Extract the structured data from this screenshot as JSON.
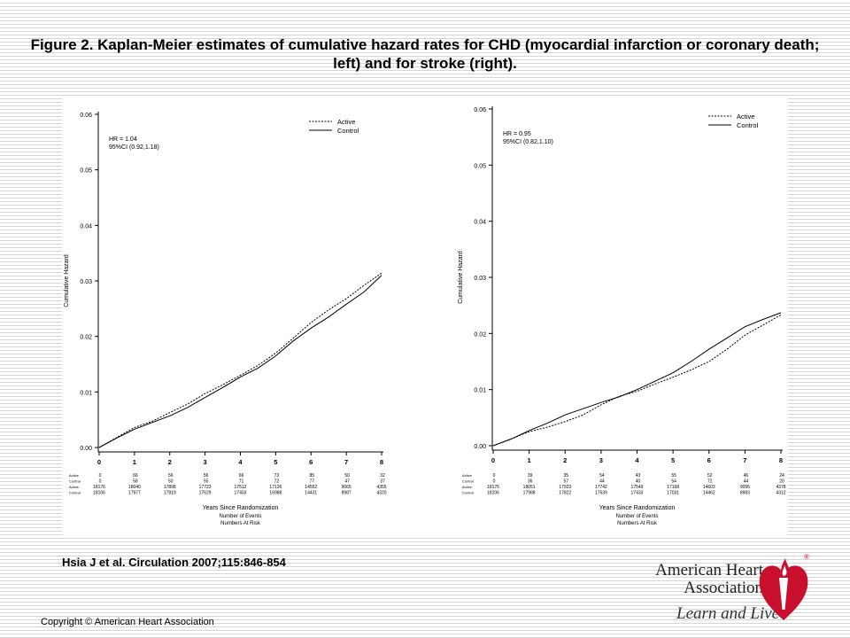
{
  "title": "Figure 2. Kaplan-Meier estimates of cumulative hazard rates for CHD (myocardial infarction or coronary death; left) and for stroke (right).",
  "citation": "Hsia J et al. Circulation 2007;115:846-854",
  "copyright": "Copyright © American Heart Association",
  "logo": {
    "name": "American Heart Association",
    "tagline": "Learn and Live",
    "registered": "®",
    "brand_color": "#c8102e"
  },
  "chart_data": [
    {
      "type": "line",
      "ylabel": "Cumulative Hazard",
      "xlabel": "Years Since Randomization",
      "xlabel_sub": [
        "Number of Events",
        "Numbers At Risk"
      ],
      "xlim": [
        0,
        8
      ],
      "ylim": [
        0,
        0.06
      ],
      "yticks": [
        "0.00",
        "0.01",
        "0.02",
        "0.03",
        "0.04",
        "0.05",
        "0.06"
      ],
      "xticks": [
        "0",
        "1",
        "2",
        "3",
        "4",
        "5",
        "6",
        "7",
        "8"
      ],
      "legend_position": "top-right",
      "annotation": [
        "HR  =  1.04",
        "95%CI  (0.92,1.18)"
      ],
      "series": [
        {
          "name": "Active",
          "style": "dashed",
          "x": [
            0,
            0.5,
            1,
            1.5,
            2,
            2.5,
            3,
            3.5,
            4,
            4.5,
            5,
            5.5,
            6,
            6.5,
            7,
            7.5,
            8
          ],
          "y": [
            0,
            0.0018,
            0.0036,
            0.0047,
            0.0063,
            0.0078,
            0.0097,
            0.0113,
            0.013,
            0.0148,
            0.017,
            0.0197,
            0.0225,
            0.0248,
            0.0268,
            0.0292,
            0.0314
          ]
        },
        {
          "name": "Control",
          "style": "solid",
          "x": [
            0,
            0.5,
            1,
            1.5,
            2,
            2.5,
            3,
            3.5,
            4,
            4.5,
            5,
            5.5,
            6,
            6.5,
            7,
            7.5,
            8
          ],
          "y": [
            0,
            0.0017,
            0.0033,
            0.0045,
            0.0057,
            0.0072,
            0.009,
            0.0108,
            0.0127,
            0.0143,
            0.0165,
            0.0192,
            0.0215,
            0.0235,
            0.0258,
            0.028,
            0.031
          ]
        }
      ],
      "risk_table": [
        {
          "label": "Active",
          "values": [
            "0",
            "66",
            "56",
            "56",
            "66",
            "73",
            "85",
            "50",
            "32"
          ]
        },
        {
          "label": "Control",
          "values": [
            "0",
            "58",
            "50",
            "55",
            "71",
            "72",
            "77",
            "47",
            "37"
          ]
        },
        {
          "label": "Active",
          "values": [
            "18176",
            "18040",
            "17898",
            "17723",
            "17512",
            "17126",
            "14552",
            "9065",
            "4355"
          ]
        },
        {
          "label": "Control",
          "values": [
            "18106",
            "17977",
            "17819",
            "17629",
            "17403",
            "16988",
            "14431",
            "8987",
            "4320"
          ]
        }
      ]
    },
    {
      "type": "line",
      "ylabel": "Cumulative Hazard",
      "xlabel": "Years Since Randomization",
      "xlabel_sub": [
        "Number of Events",
        "Numbers At Risk"
      ],
      "xlim": [
        0,
        8
      ],
      "ylim": [
        0,
        0.06
      ],
      "yticks": [
        "0.00",
        "0.01",
        "0.02",
        "0.03",
        "0.04",
        "0.05",
        "0.06"
      ],
      "xticks": [
        "0",
        "1",
        "2",
        "3",
        "4",
        "5",
        "6",
        "7",
        "8"
      ],
      "legend_position": "top-right",
      "annotation": [
        "HR  =  0.95",
        "95%CI  (0.82,1.10)"
      ],
      "series": [
        {
          "name": "Active",
          "style": "dashed",
          "x": [
            0,
            0.5,
            1,
            1.5,
            2,
            2.5,
            3,
            3.5,
            4,
            4.5,
            5,
            5.5,
            6,
            6.5,
            7,
            7.5,
            8
          ],
          "y": [
            0,
            0.0012,
            0.0025,
            0.0033,
            0.0043,
            0.0055,
            0.0073,
            0.0088,
            0.0097,
            0.011,
            0.0122,
            0.0135,
            0.015,
            0.0172,
            0.0197,
            0.0215,
            0.0233
          ]
        },
        {
          "name": "Control",
          "style": "solid",
          "x": [
            0,
            0.5,
            1,
            1.5,
            2,
            2.5,
            3,
            3.5,
            4,
            4.5,
            5,
            5.5,
            6,
            6.5,
            7,
            7.5,
            8
          ],
          "y": [
            0,
            0.0012,
            0.0027,
            0.004,
            0.0055,
            0.0066,
            0.0077,
            0.0087,
            0.01,
            0.0115,
            0.013,
            0.015,
            0.0172,
            0.0192,
            0.0212,
            0.0225,
            0.0237
          ]
        }
      ],
      "risk_table": [
        {
          "label": "Active",
          "values": [
            "0",
            "39",
            "35",
            "54",
            "43",
            "55",
            "52",
            "46",
            "24"
          ]
        },
        {
          "label": "Control",
          "values": [
            "0",
            "36",
            "57",
            "44",
            "40",
            "54",
            "72",
            "44",
            "20"
          ]
        },
        {
          "label": "Active",
          "values": [
            "18176",
            "18051",
            "17923",
            "17742",
            "17549",
            "17168",
            "14603",
            "9095",
            "4378"
          ]
        },
        {
          "label": "Control",
          "values": [
            "18106",
            "17988",
            "17822",
            "17639",
            "17433",
            "17031",
            "14462",
            "8983",
            "4312"
          ]
        }
      ]
    }
  ]
}
